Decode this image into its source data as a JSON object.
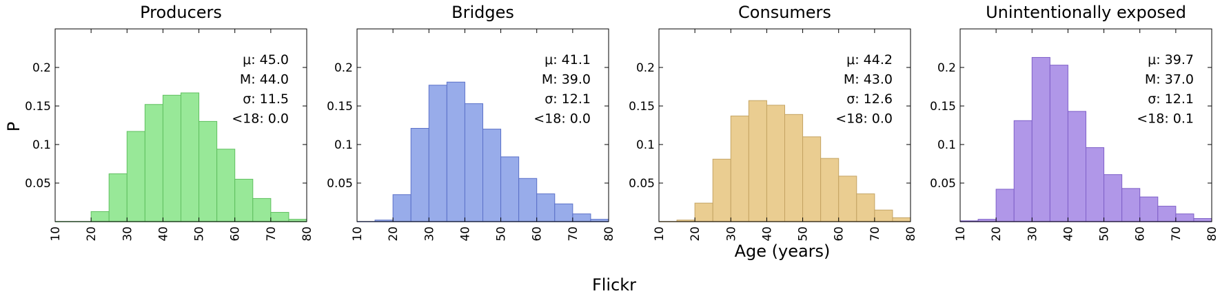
{
  "figure": {
    "ylabel": "P",
    "xlabel": "Age (years)",
    "caption": "Flickr"
  },
  "chart_data": [
    {
      "type": "bar",
      "title": "Producers",
      "color": "#98E898",
      "edge": "#5FBF5F",
      "bin_edges": [
        10,
        15,
        20,
        25,
        30,
        35,
        40,
        45,
        50,
        55,
        60,
        65,
        70,
        75,
        80
      ],
      "values": [
        0.0,
        0.0,
        0.013,
        0.062,
        0.117,
        0.152,
        0.164,
        0.167,
        0.13,
        0.094,
        0.055,
        0.03,
        0.012,
        0.003
      ],
      "xlim": [
        10,
        80
      ],
      "ylim": [
        0,
        0.25
      ],
      "xticks": [
        "10",
        "20",
        "30",
        "40",
        "50",
        "60",
        "70",
        "80"
      ],
      "yticks": [
        "0.05",
        "0.1",
        "0.15",
        "0.2"
      ],
      "stats": [
        "μ: 45.0",
        "M: 44.0",
        "σ: 11.5",
        "<18: 0.0"
      ]
    },
    {
      "type": "bar",
      "title": "Bridges",
      "color": "#98ACEA",
      "edge": "#5A70C8",
      "bin_edges": [
        10,
        15,
        20,
        25,
        30,
        35,
        40,
        45,
        50,
        55,
        60,
        65,
        70,
        75,
        80
      ],
      "values": [
        0.0,
        0.002,
        0.035,
        0.121,
        0.177,
        0.181,
        0.153,
        0.12,
        0.084,
        0.056,
        0.036,
        0.023,
        0.01,
        0.003
      ],
      "xlim": [
        10,
        80
      ],
      "ylim": [
        0,
        0.25
      ],
      "xticks": [
        "10",
        "20",
        "30",
        "40",
        "50",
        "60",
        "70",
        "80"
      ],
      "yticks": [
        "0.05",
        "0.1",
        "0.15",
        "0.2"
      ],
      "stats": [
        "μ: 41.1",
        "M: 39.0",
        "σ: 12.1",
        "<18: 0.0"
      ]
    },
    {
      "type": "bar",
      "title": "Consumers",
      "color": "#EACD91",
      "edge": "#C4A362",
      "bin_edges": [
        10,
        15,
        20,
        25,
        30,
        35,
        40,
        45,
        50,
        55,
        60,
        65,
        70,
        75,
        80
      ],
      "values": [
        0.0,
        0.002,
        0.024,
        0.081,
        0.137,
        0.157,
        0.151,
        0.139,
        0.11,
        0.082,
        0.059,
        0.036,
        0.015,
        0.005
      ],
      "xlim": [
        10,
        80
      ],
      "ylim": [
        0,
        0.25
      ],
      "xticks": [
        "10",
        "20",
        "30",
        "40",
        "50",
        "60",
        "70",
        "80"
      ],
      "yticks": [
        "0.05",
        "0.1",
        "0.15",
        "0.2"
      ],
      "stats": [
        "μ: 44.2",
        "M: 43.0",
        "σ: 12.6",
        "<18: 0.0"
      ]
    },
    {
      "type": "bar",
      "title": "Unintentionally exposed",
      "color": "#B097E8",
      "edge": "#7E5FC8",
      "bin_edges": [
        10,
        15,
        20,
        25,
        30,
        35,
        40,
        45,
        50,
        55,
        60,
        65,
        70,
        75,
        80
      ],
      "values": [
        0.001,
        0.003,
        0.042,
        0.131,
        0.213,
        0.203,
        0.143,
        0.096,
        0.061,
        0.043,
        0.032,
        0.02,
        0.01,
        0.004
      ],
      "xlim": [
        10,
        80
      ],
      "ylim": [
        0,
        0.25
      ],
      "xticks": [
        "10",
        "20",
        "30",
        "40",
        "50",
        "60",
        "70",
        "80"
      ],
      "yticks": [
        "0.05",
        "0.1",
        "0.15",
        "0.2"
      ],
      "stats": [
        "μ: 39.7",
        "M: 37.0",
        "σ: 12.1",
        "<18: 0.1"
      ]
    }
  ]
}
